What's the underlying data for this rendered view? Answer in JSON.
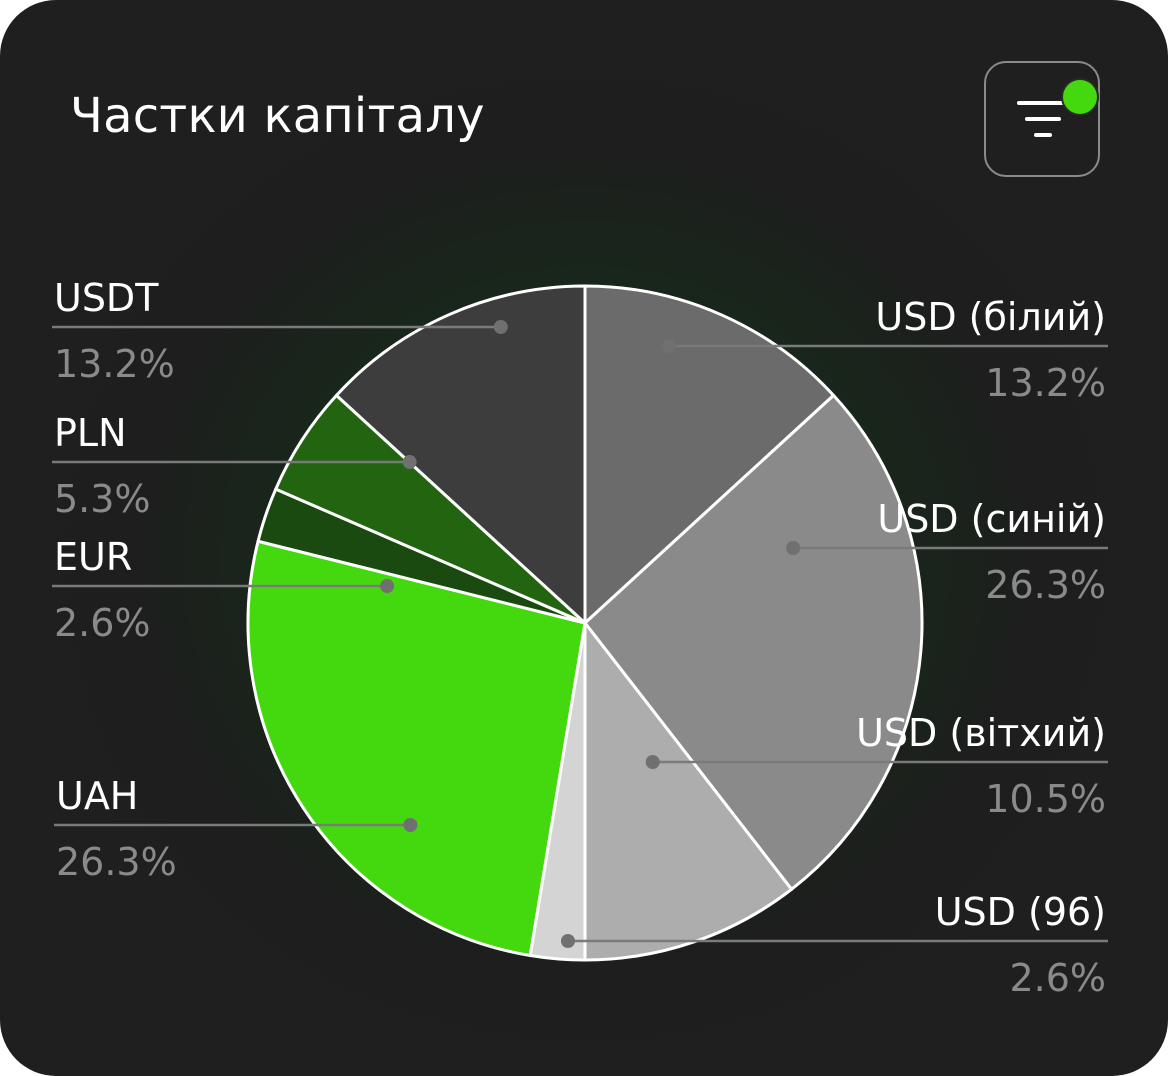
{
  "header": {
    "title": "Частки капіталу",
    "filter_button": {
      "icon": "filter-icon",
      "active_indicator_color": "#44d90f"
    }
  },
  "chart_data": {
    "type": "pie",
    "title": "",
    "slices": [
      {
        "label": "USD (білий)",
        "value": 13.2,
        "value_label": "13.2%",
        "color": "#6b6b6b",
        "side": "right"
      },
      {
        "label": "USD (синій)",
        "value": 26.3,
        "value_label": "26.3%",
        "color": "#8a8a8a",
        "side": "right"
      },
      {
        "label": "USD (вітхий)",
        "value": 10.5,
        "value_label": "10.5%",
        "color": "#adadad",
        "side": "right"
      },
      {
        "label": "USD (96)",
        "value": 2.6,
        "value_label": "2.6%",
        "color": "#d4d4d4",
        "side": "right"
      },
      {
        "label": "UAH",
        "value": 26.3,
        "value_label": "26.3%",
        "color": "#44d90f",
        "side": "left"
      },
      {
        "label": "EUR",
        "value": 2.6,
        "value_label": "2.6%",
        "color": "#1a4a0f",
        "side": "left"
      },
      {
        "label": "PLN",
        "value": 5.3,
        "value_label": "5.3%",
        "color": "#22640f",
        "side": "left"
      },
      {
        "label": "USDT",
        "value": 13.2,
        "value_label": "13.2%",
        "color": "#3d3d3d",
        "side": "left"
      }
    ]
  }
}
